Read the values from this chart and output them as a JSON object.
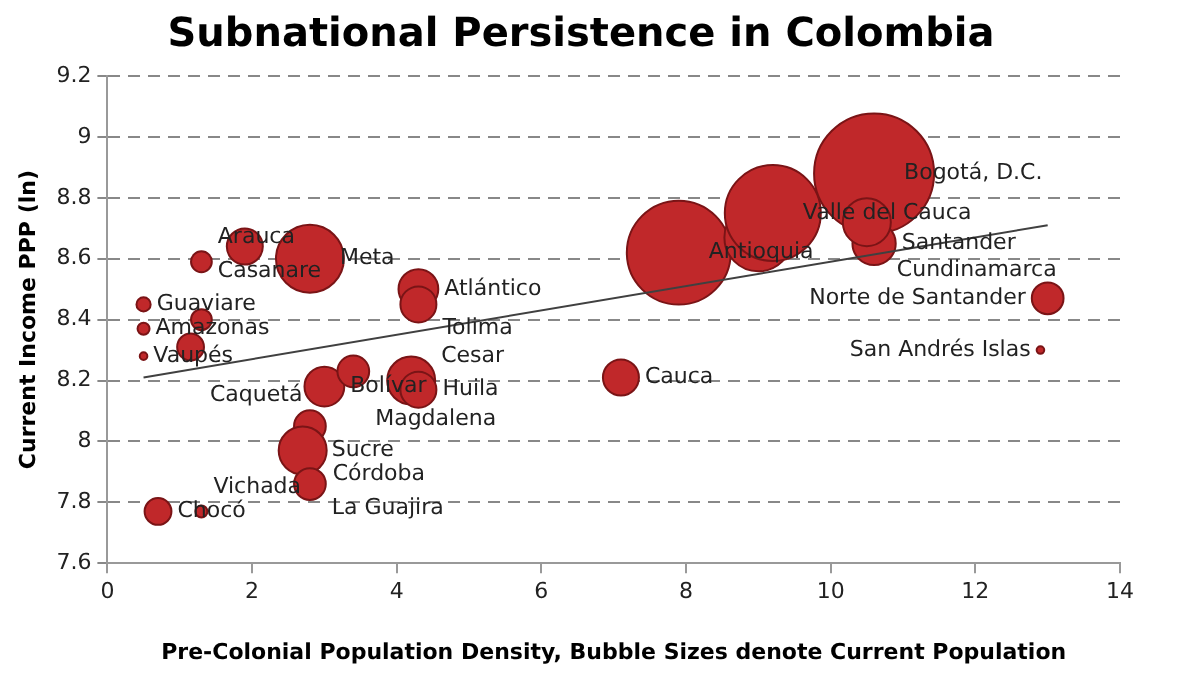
{
  "chart_data": {
    "type": "bubble",
    "title": "Subnational Persistence in Colombia",
    "xlabel": "Pre-Colonial Population Density, Bubble Sizes denote Current Population",
    "ylabel": "Current Income PPP (ln)",
    "xlim": [
      0,
      14
    ],
    "xticks": [
      0,
      2,
      4,
      6,
      8,
      10,
      12,
      14
    ],
    "ylim": [
      7.6,
      9.2
    ],
    "yticks": [
      7.6,
      7.8,
      8,
      8.2,
      8.4,
      8.6,
      8.8,
      9,
      9.2
    ],
    "grid": "y",
    "legend": false,
    "series": [
      {
        "color": "#c0282a",
        "x": [
          0.7,
          1.3,
          0.5,
          0.5,
          0.5,
          1.15,
          1.3,
          1.3,
          1.9,
          2.8,
          4.3,
          4.3,
          3.0,
          3.4,
          4.2,
          4.3,
          2.8,
          2.7,
          2.8,
          7.1,
          7.9,
          9.0,
          9.2,
          10.6,
          10.6,
          10.5,
          13.0,
          12.9
        ],
        "values": [
          7.77,
          7.77,
          8.28,
          8.37,
          8.45,
          8.31,
          8.4,
          8.59,
          8.64,
          8.6,
          8.5,
          8.45,
          8.18,
          8.23,
          8.2,
          8.17,
          8.05,
          7.97,
          7.86,
          8.21,
          8.62,
          8.67,
          8.75,
          8.88,
          8.65,
          8.72,
          8.47,
          8.3
        ],
        "sizes": [
          0.05,
          0.01,
          0.004,
          0.01,
          0.014,
          0.05,
          0.03,
          0.03,
          0.09,
          0.32,
          0.11,
          0.09,
          0.11,
          0.07,
          0.16,
          0.09,
          0.07,
          0.16,
          0.07,
          0.09,
          0.75,
          0.32,
          0.64,
          1,
          0.13,
          0.16,
          0.07,
          0.004
        ]
      },
      {
        "type": "line",
        "color": "#404040",
        "x": [
          0.5,
          13
        ],
        "values": [
          8.21,
          8.71
        ]
      }
    ],
    "annotations": [
      {
        "text": "Chocó",
        "x": 0.7,
        "y": 7.77
      },
      {
        "text": "Vichada",
        "x": 1.3,
        "y": 7.77
      },
      {
        "text": "Vaupés",
        "x": 0.5,
        "y": 8.28
      },
      {
        "text": "Amazonas",
        "x": 0.5,
        "y": 8.37
      },
      {
        "text": "Guaviare",
        "x": 0.5,
        "y": 8.45
      },
      {
        "text": "Caquetá",
        "x": 1.15,
        "y": 8.31
      },
      {
        "text": "Casanare",
        "x": 1.3,
        "y": 8.4
      },
      {
        "text": "Arauca",
        "x": 1.3,
        "y": 8.59
      },
      {
        "text": "Meta",
        "x": 2.8,
        "y": 8.6
      },
      {
        "text": "Atlántico",
        "x": 4.3,
        "y": 8.5
      },
      {
        "text": "Tolima",
        "x": 4.3,
        "y": 8.45
      },
      {
        "text": "Huila",
        "x": 4.3,
        "y": 8.17
      },
      {
        "text": "Cesar",
        "x": 4.2,
        "y": 8.2
      },
      {
        "text": "Magdalena",
        "x": 3.4,
        "y": 8.23
      },
      {
        "text": "Bolívar",
        "x": 3.0,
        "y": 8.18
      },
      {
        "text": "Sucre",
        "x": 2.8,
        "y": 8.05
      },
      {
        "text": "Córdoba",
        "x": 2.7,
        "y": 7.97
      },
      {
        "text": "La Guajira",
        "x": 2.8,
        "y": 7.86
      },
      {
        "text": "Cauca",
        "x": 7.1,
        "y": 8.21
      },
      {
        "text": "Bogotá, D.C.",
        "x": 10.6,
        "y": 8.88
      },
      {
        "text": "Valle del Cauca",
        "x": 9.2,
        "y": 8.75
      },
      {
        "text": "Antioquia",
        "x": 7.9,
        "y": 8.62
      },
      {
        "text": "Santander",
        "x": 10.6,
        "y": 8.65
      },
      {
        "text": "Cundinamarca",
        "x": 10.5,
        "y": 8.72
      },
      {
        "text": "Norte de Santander",
        "x": 13.0,
        "y": 8.47
      },
      {
        "text": "San Andrés Islas",
        "x": 12.9,
        "y": 8.3
      }
    ]
  }
}
